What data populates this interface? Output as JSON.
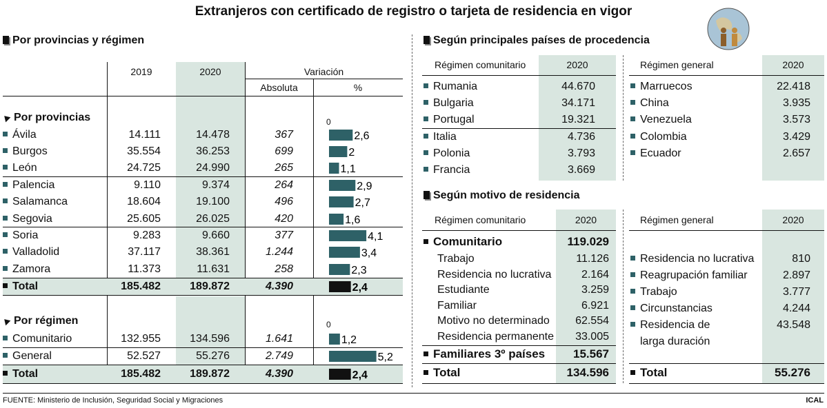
{
  "title": "Extranjeros con certificado de registro o tarjeta de residencia en vigor",
  "footer": {
    "source": "FUENTE: Ministerio de Inclusión, Seguridad Social y Migraciones",
    "brand": "ICAL"
  },
  "left": {
    "heading": "Por provincias y régimen",
    "col_2019": "2019",
    "col_2020": "2020",
    "col_variation": "Variación",
    "col_abs": "Absoluta",
    "col_pct": "%",
    "provinces_label": "Por provincias",
    "zero": "0",
    "provinces": [
      {
        "name": "Ávila",
        "v2019": "14.111",
        "v2020": "14.478",
        "abs": "367",
        "pct": "2,6"
      },
      {
        "name": "Burgos",
        "v2019": "35.554",
        "v2020": "36.253",
        "abs": "699",
        "pct": "2"
      },
      {
        "name": "León",
        "v2019": "24.725",
        "v2020": "24.990",
        "abs": "265",
        "pct": "1,1"
      },
      {
        "name": "Palencia",
        "v2019": "9.110",
        "v2020": "9.374",
        "abs": "264",
        "pct": "2,9"
      },
      {
        "name": "Salamanca",
        "v2019": "18.604",
        "v2020": "19.100",
        "abs": "496",
        "pct": "2,7"
      },
      {
        "name": "Segovia",
        "v2019": "25.605",
        "v2020": "26.025",
        "abs": "420",
        "pct": "1,6"
      },
      {
        "name": "Soria",
        "v2019": "9.283",
        "v2020": "9.660",
        "abs": "377",
        "pct": "4,1"
      },
      {
        "name": "Valladolid",
        "v2019": "37.117",
        "v2020": "38.361",
        "abs": "1.244",
        "pct": "3,4"
      },
      {
        "name": "Zamora",
        "v2019": "11.373",
        "v2020": "11.631",
        "abs": "258",
        "pct": "2,3"
      }
    ],
    "total1": {
      "name": "Total",
      "v2019": "185.482",
      "v2020": "189.872",
      "abs": "4.390",
      "pct": "2,4"
    },
    "regime_label": "Por régimen",
    "regimes": [
      {
        "name": "Comunitario",
        "v2019": "132.955",
        "v2020": "134.596",
        "abs": "1.641",
        "pct": "1,2"
      },
      {
        "name": "General",
        "v2019": "52.527",
        "v2020": "55.276",
        "abs": "2.749",
        "pct": "5,2"
      }
    ],
    "total2": {
      "name": "Total",
      "v2019": "185.482",
      "v2020": "189.872",
      "abs": "4.390",
      "pct": "2,4"
    }
  },
  "countries": {
    "heading": "Según principales países de procedencia",
    "com_label": "Régimen comunitario",
    "com_year": "2020",
    "gen_label": "Régimen general",
    "gen_year": "2020",
    "com": [
      {
        "name": "Rumania",
        "value": "44.670"
      },
      {
        "name": "Bulgaria",
        "value": "34.171"
      },
      {
        "name": "Portugal",
        "value": "19.321"
      },
      {
        "name": "Italia",
        "value": "4.736"
      },
      {
        "name": "Polonia",
        "value": "3.793"
      },
      {
        "name": "Francia",
        "value": "3.669"
      }
    ],
    "gen": [
      {
        "name": "Marruecos",
        "value": "22.418"
      },
      {
        "name": "China",
        "value": "3.935"
      },
      {
        "name": "Venezuela",
        "value": "3.573"
      },
      {
        "name": "Colombia",
        "value": "3.429"
      },
      {
        "name": "Ecuador",
        "value": "2.657"
      }
    ]
  },
  "motive": {
    "heading": "Según motivo de residencia",
    "com_label": "Régimen comunitario",
    "com_year": "2020",
    "gen_label": "Régimen general",
    "gen_year": "2020",
    "com_group": {
      "name": "Comunitario",
      "value": "119.029"
    },
    "com_items": [
      {
        "name": "Trabajo",
        "value": "11.126"
      },
      {
        "name": "Residencia no lucrativa",
        "value": "2.164"
      },
      {
        "name": "Estudiante",
        "value": "3.259"
      },
      {
        "name": "Familiar",
        "value": "6.921"
      },
      {
        "name": "Motivo no determinado",
        "value": "62.554"
      },
      {
        "name": "Residencia permanente",
        "value": "33.005"
      }
    ],
    "fam_group": {
      "name": "Familiares 3º países",
      "value": "15.567"
    },
    "com_total": {
      "name": "Total",
      "value": "134.596"
    },
    "gen_items": [
      {
        "name": "Residencia no lucrativa",
        "value": "810"
      },
      {
        "name": "Reagrupación familiar",
        "value": "2.897"
      },
      {
        "name": "Trabajo",
        "value": "3.777"
      },
      {
        "name": "Circunstancias",
        "value": "4.244"
      },
      {
        "name": "Residencia de",
        "name2": "larga duración",
        "value": "43.548"
      }
    ],
    "gen_total": {
      "name": "Total",
      "value": "55.276"
    }
  },
  "chart_data": {
    "type": "bar",
    "title": "Variación %",
    "categories": [
      "Ávila",
      "Burgos",
      "León",
      "Palencia",
      "Salamanca",
      "Segovia",
      "Soria",
      "Valladolid",
      "Zamora",
      "Total",
      "Comunitario",
      "General",
      "Total"
    ],
    "values": [
      2.6,
      2,
      1.1,
      2.9,
      2.7,
      1.6,
      4.1,
      3.4,
      2.3,
      2.4,
      1.2,
      5.2,
      2.4
    ],
    "colors": {
      "bar": "#2e6167",
      "total_bar": "#111111",
      "shade": "#d9e6e0"
    }
  }
}
